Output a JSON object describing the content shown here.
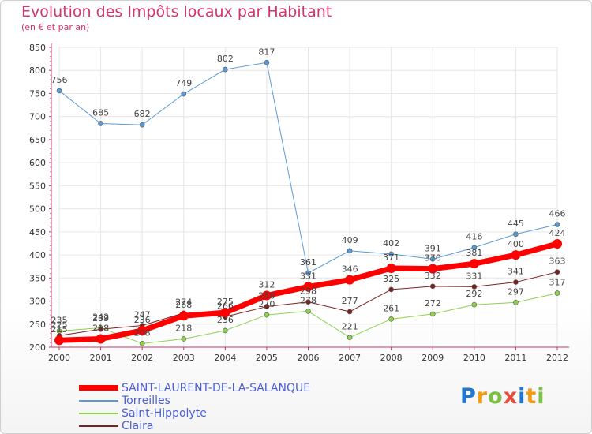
{
  "chart_data": {
    "type": "line",
    "title": "Evolution des Impôts locaux par Habitant",
    "subtitle": "(en € et par an)",
    "xlabel": "",
    "ylabel": "",
    "ylim": [
      200,
      850
    ],
    "yticks": [
      200,
      250,
      300,
      350,
      400,
      450,
      500,
      550,
      600,
      650,
      700,
      750,
      800,
      850
    ],
    "categories": [
      "2000",
      "2001",
      "2002",
      "2003",
      "2004",
      "2005",
      "2006",
      "2007",
      "2008",
      "2009",
      "2010",
      "2011",
      "2012"
    ],
    "series": [
      {
        "name": "Torreilles",
        "color": "#5b9bd5",
        "width": 1,
        "marker": 3,
        "values": [
          756,
          685,
          682,
          749,
          802,
          817,
          361,
          409,
          402,
          391,
          416,
          445,
          466
        ]
      },
      {
        "name": "Saint-Hippolyte",
        "color": "#8fd14f",
        "width": 1,
        "marker": 3,
        "values": [
          235,
          242,
          208,
          218,
          236,
          270,
          278,
          221,
          261,
          272,
          292,
          297,
          317
        ]
      },
      {
        "name": "Claira",
        "color": "#7a2222",
        "width": 1,
        "marker": 3,
        "values": [
          225,
          239,
          247,
          274,
          266,
          288,
          298,
          277,
          325,
          332,
          331,
          341,
          363
        ]
      },
      {
        "name": "SAINT-LAURENT-DE-LA-SALANQUE",
        "color": "#ff0000",
        "width": 7,
        "marker": 6,
        "values": [
          215,
          218,
          236,
          268,
          275,
          312,
          331,
          346,
          371,
          370,
          381,
          400,
          424
        ]
      }
    ],
    "legend": [
      "SAINT-LAURENT-DE-LA-SALANQUE",
      "Torreilles",
      "Saint-Hippolyte",
      "Claira"
    ],
    "legend_placement": "bottom-left"
  },
  "brand": {
    "letters": [
      "P",
      "r",
      "o",
      "x",
      "i",
      "t",
      "i"
    ],
    "colors": [
      "#1f77d0",
      "#f39c12",
      "#7ac143",
      "#e74c3c",
      "#1f77d0",
      "#f39c12",
      "#7ac143"
    ]
  }
}
